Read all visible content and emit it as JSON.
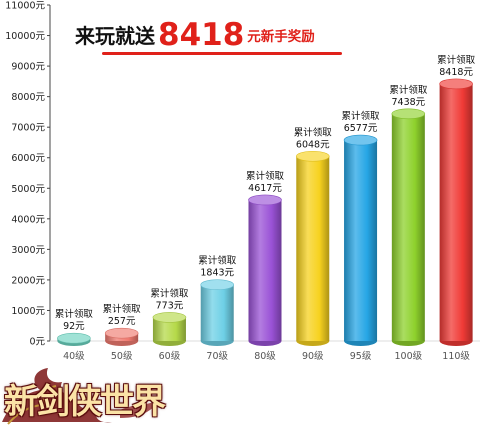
{
  "headline": {
    "lead": "来玩就送",
    "amount": "8418",
    "tail": "元新手奖励"
  },
  "logo": {
    "text": "新剑侠世界"
  },
  "chart_data": {
    "type": "bar",
    "title": "来玩就送8418元新手奖励",
    "xlabel": "",
    "ylabel": "",
    "ylim": [
      0,
      11000
    ],
    "y_ticks": [
      0,
      1000,
      2000,
      3000,
      4000,
      5000,
      6000,
      7000,
      8000,
      9000,
      10000,
      11000
    ],
    "y_tick_labels": [
      "0元",
      "1000元",
      "2000元",
      "3000元",
      "4000元",
      "5000元",
      "6000元",
      "7000元",
      "8000元",
      "9000元",
      "10000元",
      "11000元"
    ],
    "grid": false,
    "categories": [
      "40级",
      "50级",
      "60级",
      "70级",
      "80级",
      "90级",
      "95级",
      "100级",
      "110级"
    ],
    "values": [
      92,
      257,
      773,
      1843,
      4617,
      6048,
      6577,
      7438,
      8418
    ],
    "data_label_prefix": "累计领取",
    "data_labels": [
      "92元",
      "257元",
      "773元",
      "1843元",
      "4617元",
      "6048元",
      "6577元",
      "7438元",
      "8418元"
    ],
    "colors": [
      "#6dd3c0",
      "#f07a70",
      "#b5d949",
      "#6ed0e6",
      "#9a52d6",
      "#f7d21f",
      "#26a6e5",
      "#8ed12c",
      "#f03a36"
    ]
  }
}
